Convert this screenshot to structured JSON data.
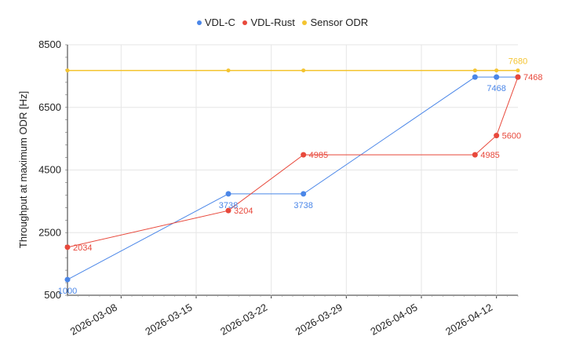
{
  "chart_data": {
    "type": "line",
    "title": "",
    "ylabel": "Throughput at maximum ODR [Hz]",
    "xlabel": "",
    "ylim": [
      500,
      8500
    ],
    "xlim": [
      "2026-03-03",
      "2026-04-14"
    ],
    "yticks": [
      500,
      2500,
      4500,
      6500,
      8500
    ],
    "xticks": [
      "2026-03-08",
      "2026-03-15",
      "2026-03-22",
      "2026-03-29",
      "2026-04-05",
      "2026-04-12"
    ],
    "grid": true,
    "legend": "top-center",
    "series": [
      {
        "name": "VDL-C",
        "color": "#4a86e8",
        "points": [
          {
            "x": "2026-03-03",
            "y": 1000,
            "label": "1000"
          },
          {
            "x": "2026-03-18",
            "y": 3738,
            "label": "3738"
          },
          {
            "x": "2026-03-25",
            "y": 3738,
            "label": "3738"
          },
          {
            "x": "2026-04-10",
            "y": 7468,
            "label": ""
          },
          {
            "x": "2026-04-12",
            "y": 7468,
            "label": "7468"
          },
          {
            "x": "2026-04-14",
            "y": 7468,
            "label": ""
          }
        ]
      },
      {
        "name": "VDL-Rust",
        "color": "#e8483b",
        "points": [
          {
            "x": "2026-03-03",
            "y": 2034,
            "label": "2034"
          },
          {
            "x": "2026-03-18",
            "y": 3204,
            "label": "3204"
          },
          {
            "x": "2026-03-25",
            "y": 4985,
            "label": "4985"
          },
          {
            "x": "2026-04-10",
            "y": 4985,
            "label": "4985"
          },
          {
            "x": "2026-04-12",
            "y": 5600,
            "label": "5600"
          },
          {
            "x": "2026-04-14",
            "y": 7468,
            "label": "7468"
          }
        ]
      },
      {
        "name": "Sensor ODR",
        "color": "#f4c430",
        "points": [
          {
            "x": "2026-03-03",
            "y": 7680,
            "label": ""
          },
          {
            "x": "2026-03-18",
            "y": 7680,
            "label": ""
          },
          {
            "x": "2026-03-25",
            "y": 7680,
            "label": ""
          },
          {
            "x": "2026-04-10",
            "y": 7680,
            "label": ""
          },
          {
            "x": "2026-04-12",
            "y": 7680,
            "label": ""
          },
          {
            "x": "2026-04-14",
            "y": 7680,
            "label": "7680"
          }
        ]
      }
    ]
  }
}
